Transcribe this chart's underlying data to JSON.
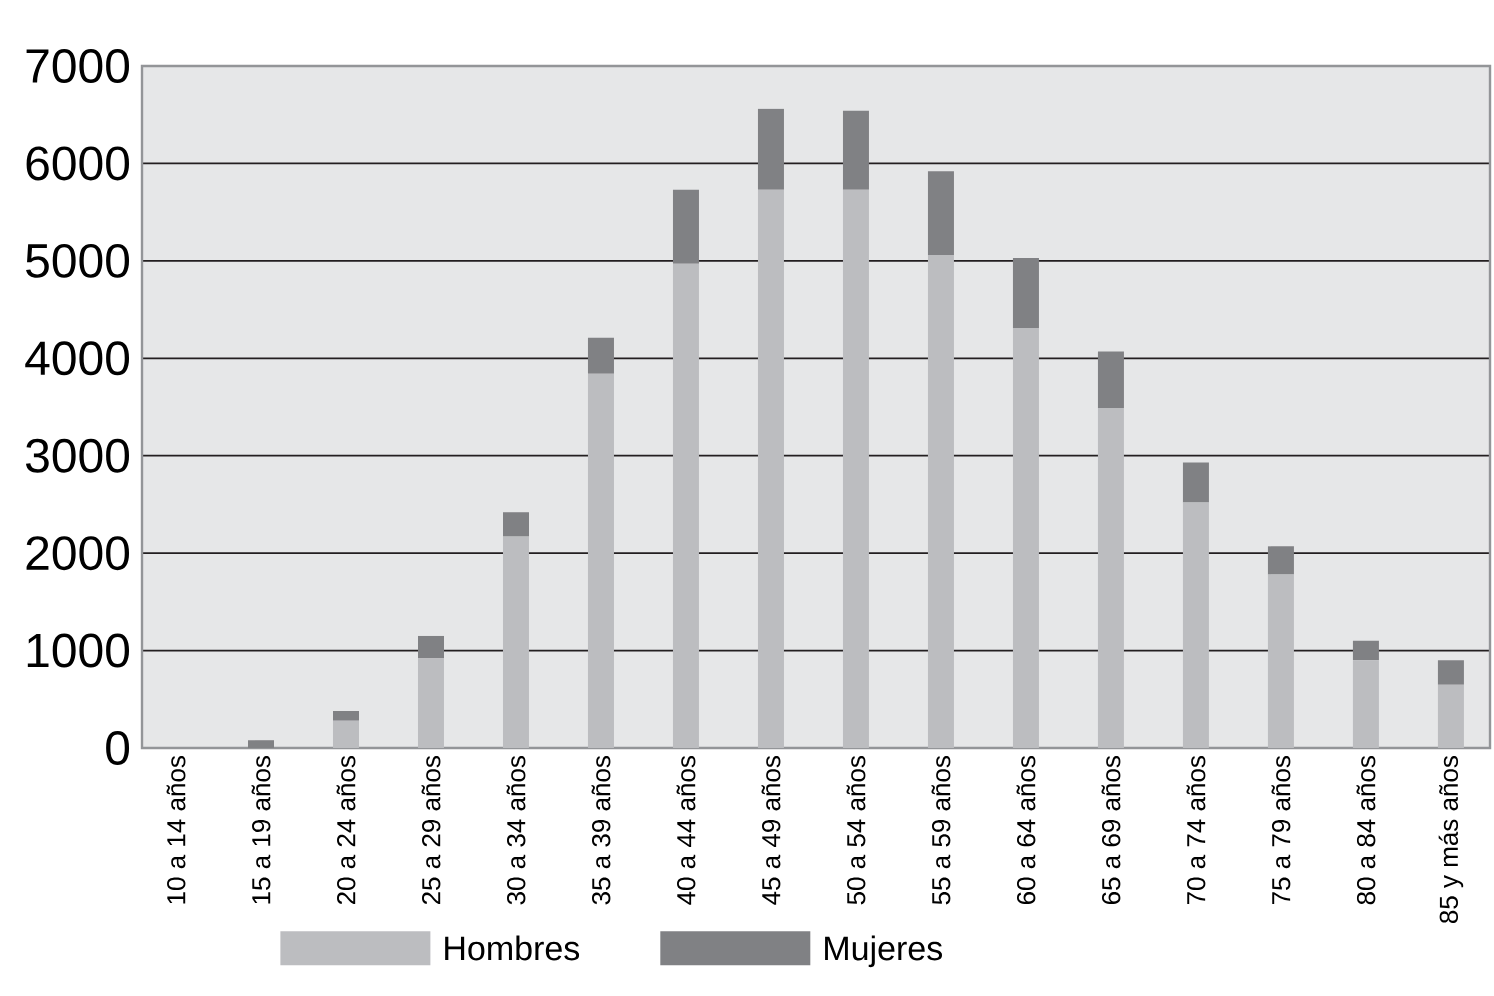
{
  "chart_data": {
    "type": "bar",
    "stacked": true,
    "categories": [
      "10 a 14 años",
      "15 a 19 años",
      "20 a 24 años",
      "25 a 29 años",
      "30 a 34 años",
      "35 a 39 años",
      "40 a 44 años",
      "45 a 49 años",
      "50 a 54 años",
      "55 a 59 años",
      "60 a 64 años",
      "65 a 69 años",
      "70 a 74 años",
      "75 a 79 años",
      "80 a 84 años",
      "85 y más años"
    ],
    "series": [
      {
        "name": "Hombres",
        "color": "#bcbdc0",
        "values": [
          0,
          0,
          280,
          920,
          2170,
          3840,
          4970,
          5730,
          5730,
          5060,
          4310,
          3490,
          2520,
          1780,
          900,
          650
        ]
      },
      {
        "name": "Mujeres",
        "color": "#808184",
        "values": [
          0,
          80,
          100,
          230,
          250,
          370,
          760,
          830,
          810,
          860,
          720,
          580,
          410,
          290,
          200,
          250
        ]
      }
    ],
    "ylim": [
      0,
      7000
    ],
    "yticks": [
      0,
      1000,
      2000,
      3000,
      4000,
      5000,
      6000,
      7000
    ],
    "grid": "y",
    "legend": "bottom"
  }
}
